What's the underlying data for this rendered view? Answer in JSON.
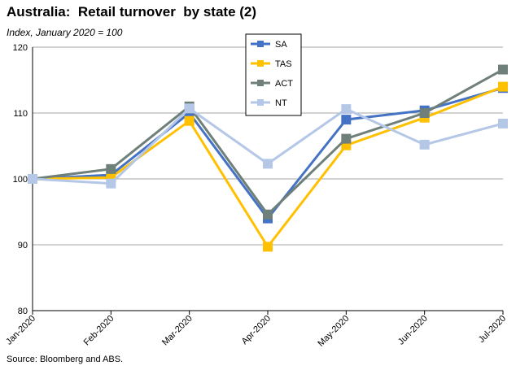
{
  "title": "Australia:  Retail turnover  by state (2)",
  "subtitle": "Index, January 2020 = 100",
  "source": "Source: Bloomberg and ABS.",
  "chart_data": {
    "type": "line",
    "title": "Australia:  Retail turnover  by state (2)",
    "ylabel": "Index, January 2020 = 100",
    "xlabel": "",
    "categories": [
      "Jan-2020",
      "Feb-2020",
      "Mar-2020",
      "Apr-2020",
      "May-2020",
      "Jun-2020",
      "Jul-2020"
    ],
    "ylim": [
      80,
      120
    ],
    "yticks": [
      80,
      90,
      100,
      110,
      120
    ],
    "grid": true,
    "legend_position": "top-center",
    "series": [
      {
        "name": "SA",
        "color": "#4472C4",
        "values": [
          100,
          100.6,
          110.0,
          94.0,
          109.0,
          110.4,
          113.8
        ]
      },
      {
        "name": "TAS",
        "color": "#FFC000",
        "values": [
          100,
          100.2,
          108.8,
          89.7,
          105.1,
          109.3,
          114.0
        ]
      },
      {
        "name": "ACT",
        "color": "#6F7F7A",
        "values": [
          100,
          101.5,
          111.0,
          94.6,
          106.1,
          110.0,
          116.6
        ]
      },
      {
        "name": "NT",
        "color": "#B4C7E7",
        "values": [
          100,
          99.3,
          110.7,
          102.3,
          110.6,
          105.2,
          108.4
        ]
      }
    ]
  }
}
